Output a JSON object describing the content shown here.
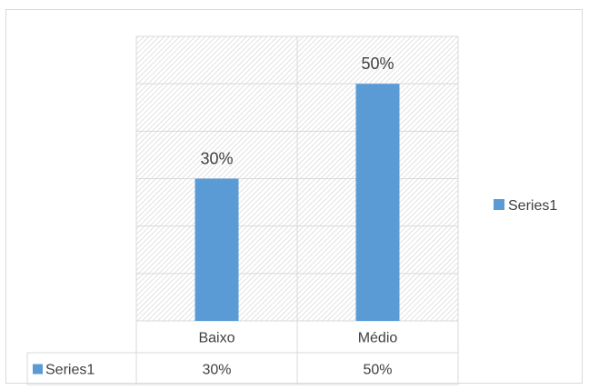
{
  "chart_data": {
    "type": "bar",
    "categories": [
      "Baixo",
      "Médio"
    ],
    "series": [
      {
        "name": "Series1",
        "values": [
          30,
          50
        ],
        "color": "#5b9bd5"
      }
    ],
    "data_labels": [
      "30%",
      "50%"
    ],
    "table_values": [
      "30%",
      "50%"
    ],
    "ylim": [
      0,
      60
    ],
    "grid": true,
    "legend": "right",
    "data_table": true,
    "title": "",
    "xlabel": "",
    "ylabel": ""
  },
  "legend": {
    "label": "Series1"
  },
  "table": {
    "series_label": "Series1"
  },
  "colors": {
    "bar": "#5b9bd5",
    "grid": "#d9d9d9",
    "text": "#404040"
  }
}
